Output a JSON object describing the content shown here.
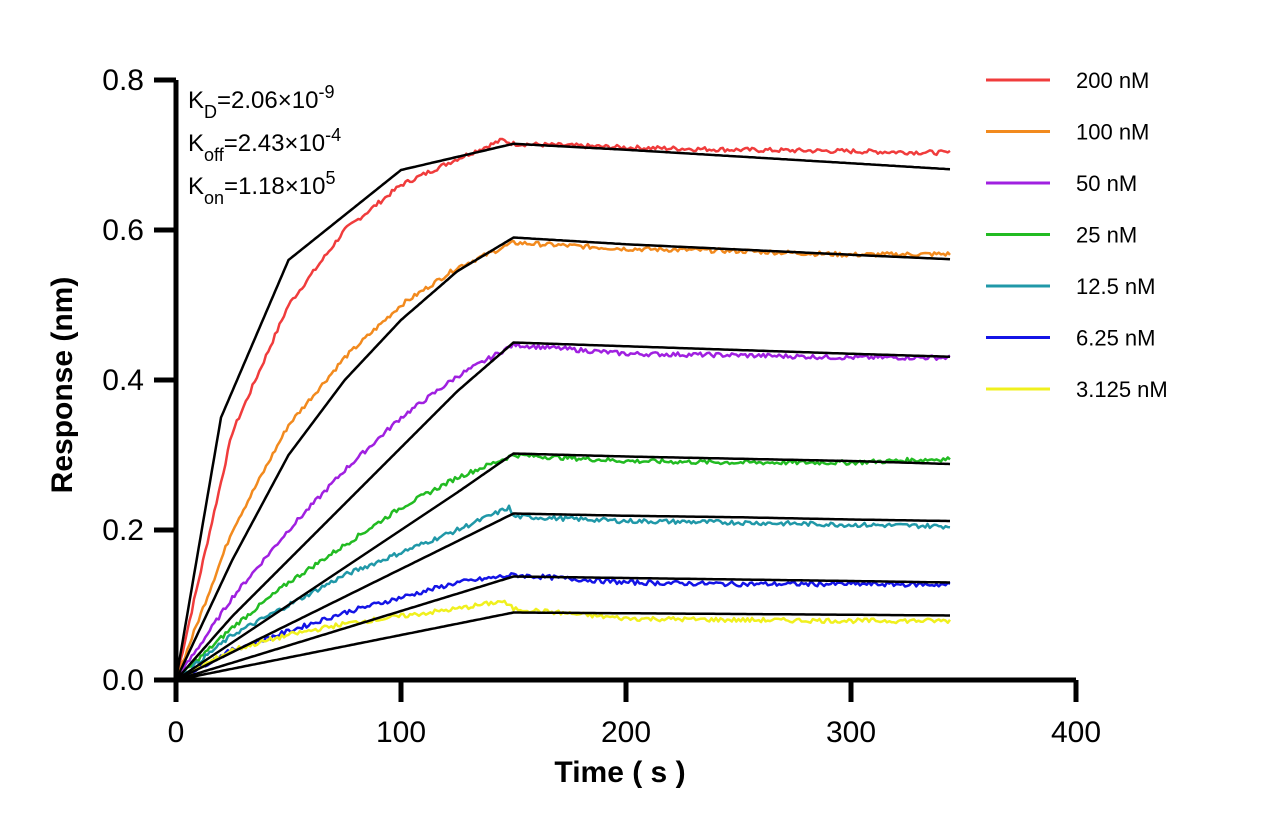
{
  "chart_data": {
    "type": "line",
    "title": "",
    "xlabel": "Time ( s )",
    "ylabel": "Response (nm)",
    "xlim": [
      0,
      400
    ],
    "ylim": [
      0,
      0.8
    ],
    "x_ticks": [
      0,
      100,
      200,
      300,
      400
    ],
    "x_tick_labels": [
      "0",
      "100",
      "200",
      "300",
      "400"
    ],
    "y_ticks": [
      0.0,
      0.2,
      0.4,
      0.6,
      0.8
    ],
    "y_tick_labels": [
      "0.0",
      "0.2",
      "0.4",
      "0.6",
      "0.8"
    ],
    "grid": false,
    "legend_position": "right",
    "association_end_s": 150,
    "x_end_s": 344,
    "annotations": [
      {
        "base": "K",
        "sub": "D",
        "text": "=2.06×10",
        "sup": "-9"
      },
      {
        "base": "K",
        "sub": "off",
        "text": "=2.43×10",
        "sup": "-4"
      },
      {
        "base": "K",
        "sub": "on",
        "text": "=1.18×10",
        "sup": "5"
      }
    ],
    "series": [
      {
        "name": "200 nM",
        "color": "#f03c3c",
        "measured_points": [
          [
            0,
            0
          ],
          [
            25,
            0.33
          ],
          [
            50,
            0.5
          ],
          [
            75,
            0.6
          ],
          [
            100,
            0.66
          ],
          [
            125,
            0.695
          ],
          [
            145,
            0.72
          ],
          [
            150,
            0.715
          ],
          [
            200,
            0.71
          ],
          [
            250,
            0.707
          ],
          [
            300,
            0.705
          ],
          [
            344,
            0.703
          ]
        ],
        "fit_points": [
          [
            0,
            0
          ],
          [
            20,
            0.35
          ],
          [
            50,
            0.56
          ],
          [
            100,
            0.68
          ],
          [
            150,
            0.715
          ],
          [
            200,
            0.707
          ],
          [
            250,
            0.698
          ],
          [
            300,
            0.689
          ],
          [
            344,
            0.681
          ]
        ]
      },
      {
        "name": "100 nM",
        "color": "#f28a1e",
        "measured_points": [
          [
            0,
            0
          ],
          [
            25,
            0.2
          ],
          [
            50,
            0.34
          ],
          [
            75,
            0.43
          ],
          [
            100,
            0.5
          ],
          [
            125,
            0.55
          ],
          [
            150,
            0.583
          ],
          [
            200,
            0.575
          ],
          [
            250,
            0.572
          ],
          [
            300,
            0.567
          ],
          [
            344,
            0.568
          ]
        ],
        "fit_points": [
          [
            0,
            0
          ],
          [
            25,
            0.16
          ],
          [
            50,
            0.3
          ],
          [
            75,
            0.4
          ],
          [
            100,
            0.48
          ],
          [
            125,
            0.545
          ],
          [
            150,
            0.59
          ],
          [
            200,
            0.581
          ],
          [
            250,
            0.574
          ],
          [
            300,
            0.567
          ],
          [
            344,
            0.561
          ]
        ]
      },
      {
        "name": "50 nM",
        "color": "#a020e0",
        "measured_points": [
          [
            0,
            0
          ],
          [
            25,
            0.11
          ],
          [
            50,
            0.2
          ],
          [
            75,
            0.28
          ],
          [
            100,
            0.35
          ],
          [
            125,
            0.405
          ],
          [
            150,
            0.447
          ],
          [
            200,
            0.435
          ],
          [
            250,
            0.433
          ],
          [
            300,
            0.43
          ],
          [
            344,
            0.43
          ]
        ],
        "fit_points": [
          [
            0,
            0
          ],
          [
            25,
            0.085
          ],
          [
            50,
            0.16
          ],
          [
            75,
            0.235
          ],
          [
            100,
            0.31
          ],
          [
            125,
            0.385
          ],
          [
            150,
            0.45
          ],
          [
            200,
            0.445
          ],
          [
            250,
            0.44
          ],
          [
            300,
            0.435
          ],
          [
            344,
            0.431
          ]
        ]
      },
      {
        "name": "25 nM",
        "color": "#22bb22",
        "measured_points": [
          [
            0,
            0
          ],
          [
            25,
            0.07
          ],
          [
            50,
            0.13
          ],
          [
            75,
            0.18
          ],
          [
            100,
            0.23
          ],
          [
            125,
            0.27
          ],
          [
            150,
            0.3
          ],
          [
            200,
            0.292
          ],
          [
            250,
            0.29
          ],
          [
            300,
            0.29
          ],
          [
            344,
            0.295
          ]
        ],
        "fit_points": [
          [
            0,
            0
          ],
          [
            25,
            0.05
          ],
          [
            50,
            0.1
          ],
          [
            75,
            0.15
          ],
          [
            100,
            0.2
          ],
          [
            125,
            0.25
          ],
          [
            150,
            0.302
          ],
          [
            200,
            0.298
          ],
          [
            250,
            0.295
          ],
          [
            300,
            0.292
          ],
          [
            344,
            0.288
          ]
        ]
      },
      {
        "name": "12.5 nM",
        "color": "#2098a8",
        "measured_points": [
          [
            0,
            0
          ],
          [
            25,
            0.06
          ],
          [
            50,
            0.1
          ],
          [
            75,
            0.14
          ],
          [
            100,
            0.17
          ],
          [
            125,
            0.2
          ],
          [
            148,
            0.23
          ],
          [
            150,
            0.218
          ],
          [
            200,
            0.212
          ],
          [
            250,
            0.21
          ],
          [
            300,
            0.207
          ],
          [
            344,
            0.205
          ]
        ],
        "fit_points": [
          [
            0,
            0
          ],
          [
            25,
            0.037
          ],
          [
            50,
            0.074
          ],
          [
            75,
            0.111
          ],
          [
            100,
            0.148
          ],
          [
            125,
            0.185
          ],
          [
            150,
            0.222
          ],
          [
            200,
            0.219
          ],
          [
            250,
            0.217
          ],
          [
            300,
            0.214
          ],
          [
            344,
            0.212
          ]
        ]
      },
      {
        "name": "6.25 nM",
        "color": "#1414e6",
        "measured_points": [
          [
            0,
            0
          ],
          [
            25,
            0.04
          ],
          [
            50,
            0.065
          ],
          [
            75,
            0.09
          ],
          [
            100,
            0.11
          ],
          [
            125,
            0.13
          ],
          [
            150,
            0.14
          ],
          [
            200,
            0.13
          ],
          [
            250,
            0.128
          ],
          [
            300,
            0.128
          ],
          [
            344,
            0.127
          ]
        ],
        "fit_points": [
          [
            0,
            0
          ],
          [
            25,
            0.023
          ],
          [
            50,
            0.046
          ],
          [
            75,
            0.069
          ],
          [
            100,
            0.092
          ],
          [
            125,
            0.115
          ],
          [
            150,
            0.138
          ],
          [
            200,
            0.136
          ],
          [
            250,
            0.134
          ],
          [
            300,
            0.132
          ],
          [
            344,
            0.13
          ]
        ]
      },
      {
        "name": "3.125 nM",
        "color": "#f0f01e",
        "measured_points": [
          [
            0,
            0
          ],
          [
            25,
            0.04
          ],
          [
            50,
            0.06
          ],
          [
            75,
            0.075
          ],
          [
            100,
            0.085
          ],
          [
            125,
            0.095
          ],
          [
            145,
            0.105
          ],
          [
            150,
            0.095
          ],
          [
            200,
            0.082
          ],
          [
            250,
            0.08
          ],
          [
            300,
            0.079
          ],
          [
            344,
            0.079
          ]
        ],
        "fit_points": [
          [
            0,
            0
          ],
          [
            25,
            0.015
          ],
          [
            50,
            0.03
          ],
          [
            75,
            0.045
          ],
          [
            100,
            0.06
          ],
          [
            125,
            0.075
          ],
          [
            150,
            0.09
          ],
          [
            200,
            0.089
          ],
          [
            250,
            0.088
          ],
          [
            300,
            0.087
          ],
          [
            344,
            0.086
          ]
        ]
      }
    ]
  }
}
